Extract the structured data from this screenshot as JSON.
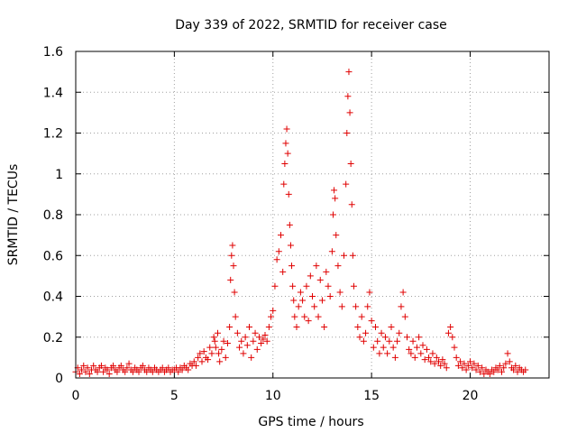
{
  "chart_data": {
    "type": "scatter",
    "title": "Day 339 of 2022, SRMTID for receiver case",
    "xlabel": "GPS time / hours",
    "ylabel": "SRMTID / TECUs",
    "xlim": [
      0,
      24
    ],
    "ylim": [
      0,
      1.6
    ],
    "x_ticks": [
      0,
      5,
      10,
      15,
      20
    ],
    "x_tick_labels": [
      "0",
      "5",
      "10",
      "15",
      "20"
    ],
    "y_ticks": [
      0,
      0.2,
      0.4,
      0.6,
      0.8,
      1.0,
      1.2,
      1.4,
      1.6
    ],
    "y_tick_labels": [
      "0",
      "0.2",
      "0.4",
      "0.6",
      "0.8",
      "1",
      "1.2",
      "1.4",
      "1.6"
    ],
    "grid": true,
    "marker": "plus",
    "series": [
      {
        "name": "SRMTID",
        "color": "#e00000",
        "points": [
          [
            0.0,
            0.03
          ],
          [
            0.1,
            0.05
          ],
          [
            0.2,
            0.02
          ],
          [
            0.3,
            0.04
          ],
          [
            0.4,
            0.06
          ],
          [
            0.5,
            0.03
          ],
          [
            0.6,
            0.05
          ],
          [
            0.7,
            0.02
          ],
          [
            0.8,
            0.04
          ],
          [
            0.9,
            0.06
          ],
          [
            1.0,
            0.04
          ],
          [
            1.1,
            0.03
          ],
          [
            1.2,
            0.05
          ],
          [
            1.3,
            0.06
          ],
          [
            1.4,
            0.03
          ],
          [
            1.5,
            0.05
          ],
          [
            1.6,
            0.04
          ],
          [
            1.7,
            0.02
          ],
          [
            1.8,
            0.05
          ],
          [
            1.9,
            0.06
          ],
          [
            2.0,
            0.04
          ],
          [
            2.1,
            0.03
          ],
          [
            2.2,
            0.05
          ],
          [
            2.3,
            0.06
          ],
          [
            2.4,
            0.04
          ],
          [
            2.5,
            0.03
          ],
          [
            2.6,
            0.05
          ],
          [
            2.7,
            0.07
          ],
          [
            2.8,
            0.04
          ],
          [
            2.9,
            0.03
          ],
          [
            3.0,
            0.05
          ],
          [
            3.1,
            0.04
          ],
          [
            3.2,
            0.03
          ],
          [
            3.3,
            0.05
          ],
          [
            3.4,
            0.06
          ],
          [
            3.5,
            0.04
          ],
          [
            3.6,
            0.03
          ],
          [
            3.7,
            0.05
          ],
          [
            3.8,
            0.04
          ],
          [
            3.9,
            0.03
          ],
          [
            4.0,
            0.05
          ],
          [
            4.1,
            0.04
          ],
          [
            4.2,
            0.03
          ],
          [
            4.3,
            0.04
          ],
          [
            4.4,
            0.05
          ],
          [
            4.5,
            0.03
          ],
          [
            4.6,
            0.04
          ],
          [
            4.7,
            0.05
          ],
          [
            4.8,
            0.03
          ],
          [
            4.9,
            0.04
          ],
          [
            5.0,
            0.04
          ],
          [
            5.1,
            0.05
          ],
          [
            5.2,
            0.03
          ],
          [
            5.3,
            0.05
          ],
          [
            5.4,
            0.04
          ],
          [
            5.5,
            0.06
          ],
          [
            5.6,
            0.05
          ],
          [
            5.7,
            0.04
          ],
          [
            5.8,
            0.07
          ],
          [
            5.9,
            0.06
          ],
          [
            6.0,
            0.08
          ],
          [
            6.1,
            0.06
          ],
          [
            6.2,
            0.1
          ],
          [
            6.3,
            0.12
          ],
          [
            6.4,
            0.08
          ],
          [
            6.5,
            0.13
          ],
          [
            6.6,
            0.1
          ],
          [
            6.7,
            0.09
          ],
          [
            6.8,
            0.15
          ],
          [
            6.9,
            0.12
          ],
          [
            7.0,
            0.2
          ],
          [
            7.05,
            0.18
          ],
          [
            7.1,
            0.15
          ],
          [
            7.2,
            0.22
          ],
          [
            7.25,
            0.12
          ],
          [
            7.3,
            0.08
          ],
          [
            7.4,
            0.14
          ],
          [
            7.5,
            0.18
          ],
          [
            7.6,
            0.1
          ],
          [
            7.7,
            0.17
          ],
          [
            7.8,
            0.25
          ],
          [
            7.85,
            0.48
          ],
          [
            7.9,
            0.6
          ],
          [
            7.95,
            0.65
          ],
          [
            8.0,
            0.55
          ],
          [
            8.05,
            0.42
          ],
          [
            8.1,
            0.3
          ],
          [
            8.2,
            0.22
          ],
          [
            8.3,
            0.15
          ],
          [
            8.4,
            0.18
          ],
          [
            8.5,
            0.12
          ],
          [
            8.6,
            0.2
          ],
          [
            8.7,
            0.16
          ],
          [
            8.8,
            0.25
          ],
          [
            8.9,
            0.1
          ],
          [
            9.0,
            0.18
          ],
          [
            9.1,
            0.22
          ],
          [
            9.2,
            0.14
          ],
          [
            9.3,
            0.2
          ],
          [
            9.4,
            0.17
          ],
          [
            9.5,
            0.19
          ],
          [
            9.6,
            0.21
          ],
          [
            9.7,
            0.18
          ],
          [
            9.8,
            0.25
          ],
          [
            9.9,
            0.3
          ],
          [
            10.0,
            0.33
          ],
          [
            10.1,
            0.45
          ],
          [
            10.2,
            0.58
          ],
          [
            10.3,
            0.62
          ],
          [
            10.4,
            0.7
          ],
          [
            10.5,
            0.52
          ],
          [
            10.55,
            0.95
          ],
          [
            10.6,
            1.05
          ],
          [
            10.65,
            1.15
          ],
          [
            10.7,
            1.22
          ],
          [
            10.75,
            1.1
          ],
          [
            10.8,
            0.9
          ],
          [
            10.85,
            0.75
          ],
          [
            10.9,
            0.65
          ],
          [
            10.95,
            0.55
          ],
          [
            11.0,
            0.45
          ],
          [
            11.05,
            0.38
          ],
          [
            11.1,
            0.3
          ],
          [
            11.2,
            0.25
          ],
          [
            11.3,
            0.35
          ],
          [
            11.4,
            0.42
          ],
          [
            11.5,
            0.38
          ],
          [
            11.6,
            0.3
          ],
          [
            11.7,
            0.45
          ],
          [
            11.8,
            0.28
          ],
          [
            11.9,
            0.5
          ],
          [
            12.0,
            0.4
          ],
          [
            12.1,
            0.35
          ],
          [
            12.2,
            0.55
          ],
          [
            12.3,
            0.3
          ],
          [
            12.4,
            0.48
          ],
          [
            12.5,
            0.38
          ],
          [
            12.6,
            0.25
          ],
          [
            12.7,
            0.52
          ],
          [
            12.8,
            0.45
          ],
          [
            12.9,
            0.4
          ],
          [
            13.0,
            0.62
          ],
          [
            13.05,
            0.8
          ],
          [
            13.1,
            0.92
          ],
          [
            13.15,
            0.88
          ],
          [
            13.2,
            0.7
          ],
          [
            13.3,
            0.55
          ],
          [
            13.4,
            0.42
          ],
          [
            13.5,
            0.35
          ],
          [
            13.6,
            0.6
          ],
          [
            13.7,
            0.95
          ],
          [
            13.75,
            1.2
          ],
          [
            13.8,
            1.38
          ],
          [
            13.85,
            1.5
          ],
          [
            13.9,
            1.3
          ],
          [
            13.95,
            1.05
          ],
          [
            14.0,
            0.85
          ],
          [
            14.05,
            0.6
          ],
          [
            14.1,
            0.45
          ],
          [
            14.2,
            0.35
          ],
          [
            14.3,
            0.25
          ],
          [
            14.4,
            0.2
          ],
          [
            14.5,
            0.3
          ],
          [
            14.6,
            0.18
          ],
          [
            14.7,
            0.22
          ],
          [
            14.8,
            0.35
          ],
          [
            14.9,
            0.42
          ],
          [
            15.0,
            0.28
          ],
          [
            15.1,
            0.15
          ],
          [
            15.2,
            0.25
          ],
          [
            15.3,
            0.18
          ],
          [
            15.4,
            0.12
          ],
          [
            15.5,
            0.22
          ],
          [
            15.6,
            0.15
          ],
          [
            15.7,
            0.2
          ],
          [
            15.8,
            0.12
          ],
          [
            15.9,
            0.18
          ],
          [
            16.0,
            0.25
          ],
          [
            16.1,
            0.15
          ],
          [
            16.2,
            0.1
          ],
          [
            16.3,
            0.18
          ],
          [
            16.4,
            0.22
          ],
          [
            16.5,
            0.35
          ],
          [
            16.6,
            0.42
          ],
          [
            16.7,
            0.3
          ],
          [
            16.8,
            0.2
          ],
          [
            16.9,
            0.14
          ],
          [
            17.0,
            0.12
          ],
          [
            17.1,
            0.18
          ],
          [
            17.2,
            0.1
          ],
          [
            17.3,
            0.15
          ],
          [
            17.4,
            0.2
          ],
          [
            17.5,
            0.12
          ],
          [
            17.6,
            0.16
          ],
          [
            17.7,
            0.09
          ],
          [
            17.8,
            0.14
          ],
          [
            17.9,
            0.1
          ],
          [
            18.0,
            0.08
          ],
          [
            18.1,
            0.12
          ],
          [
            18.2,
            0.07
          ],
          [
            18.3,
            0.1
          ],
          [
            18.4,
            0.08
          ],
          [
            18.5,
            0.06
          ],
          [
            18.6,
            0.09
          ],
          [
            18.7,
            0.07
          ],
          [
            18.8,
            0.05
          ],
          [
            18.9,
            0.22
          ],
          [
            19.0,
            0.25
          ],
          [
            19.1,
            0.2
          ],
          [
            19.2,
            0.15
          ],
          [
            19.3,
            0.1
          ],
          [
            19.4,
            0.06
          ],
          [
            19.5,
            0.08
          ],
          [
            19.6,
            0.05
          ],
          [
            19.7,
            0.07
          ],
          [
            19.8,
            0.04
          ],
          [
            19.9,
            0.06
          ],
          [
            20.0,
            0.08
          ],
          [
            20.1,
            0.05
          ],
          [
            20.2,
            0.07
          ],
          [
            20.3,
            0.04
          ],
          [
            20.4,
            0.06
          ],
          [
            20.5,
            0.03
          ],
          [
            20.6,
            0.05
          ],
          [
            20.7,
            0.02
          ],
          [
            20.8,
            0.04
          ],
          [
            20.9,
            0.03
          ],
          [
            21.0,
            0.02
          ],
          [
            21.1,
            0.04
          ],
          [
            21.2,
            0.03
          ],
          [
            21.3,
            0.05
          ],
          [
            21.4,
            0.04
          ],
          [
            21.5,
            0.06
          ],
          [
            21.6,
            0.03
          ],
          [
            21.7,
            0.05
          ],
          [
            21.8,
            0.07
          ],
          [
            21.9,
            0.12
          ],
          [
            22.0,
            0.08
          ],
          [
            22.1,
            0.05
          ],
          [
            22.2,
            0.04
          ],
          [
            22.3,
            0.06
          ],
          [
            22.4,
            0.03
          ],
          [
            22.5,
            0.05
          ],
          [
            22.6,
            0.04
          ],
          [
            22.7,
            0.03
          ],
          [
            22.8,
            0.04
          ]
        ]
      }
    ]
  }
}
